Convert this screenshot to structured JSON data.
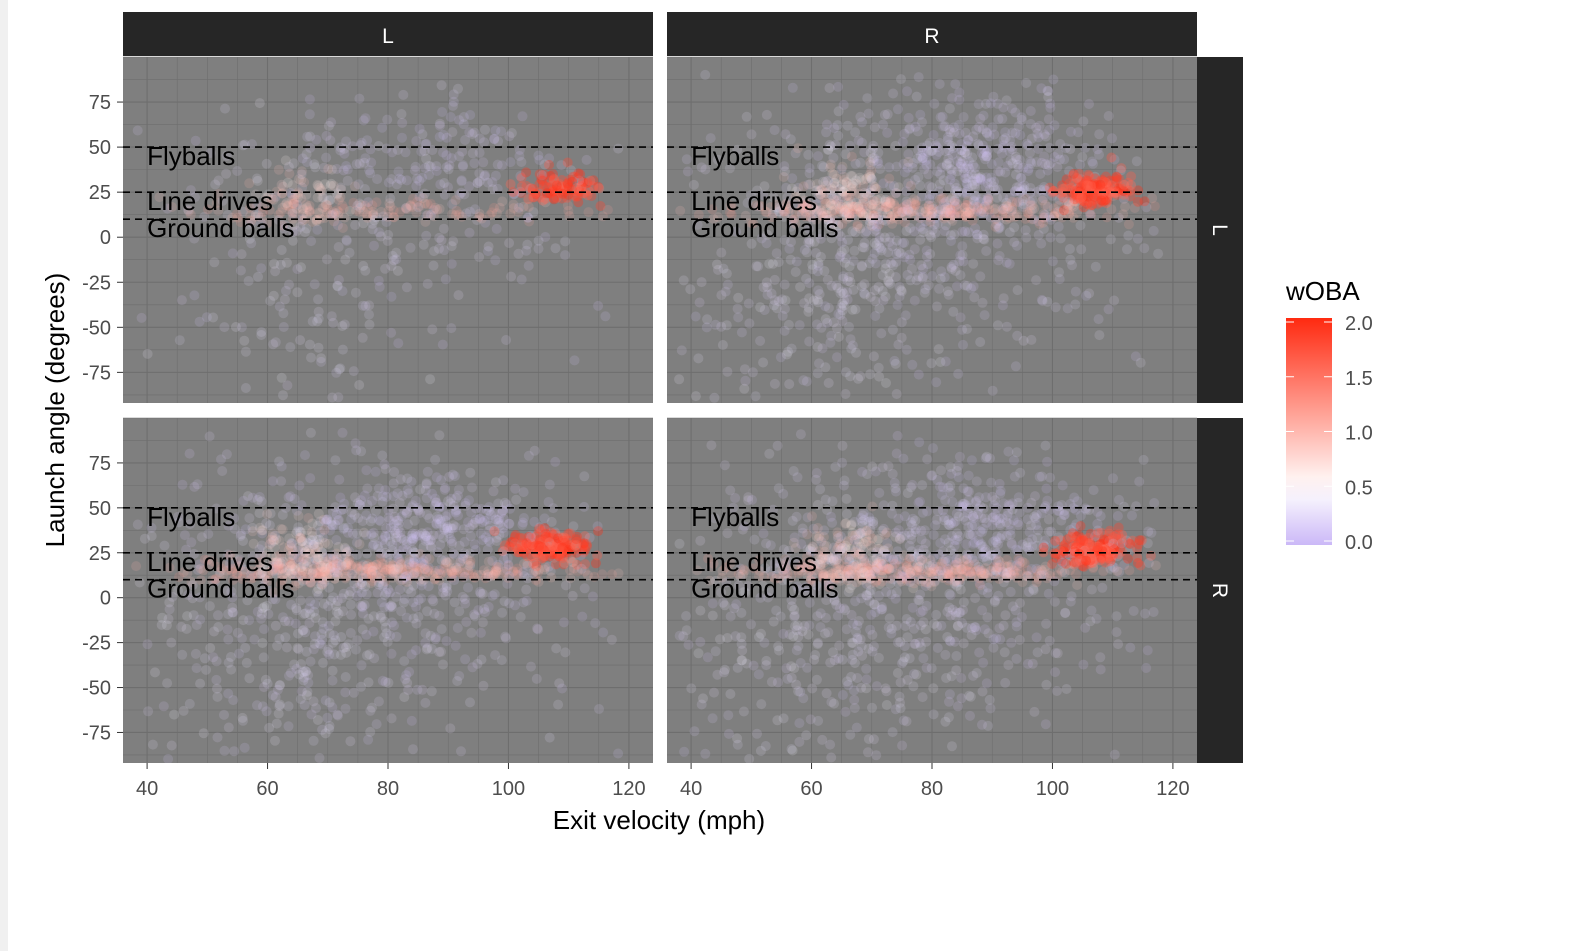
{
  "chart_data": {
    "type": "scatter",
    "facet_columns": [
      "L",
      "R"
    ],
    "facet_rows": [
      "L",
      "R"
    ],
    "xlabel": "Exit velocity (mph)",
    "ylabel": "Launch angle (degrees)",
    "xlim": [
      36,
      124
    ],
    "ylim": [
      -92,
      100
    ],
    "x_ticks": [
      40,
      60,
      80,
      100,
      120
    ],
    "y_ticks": [
      75,
      50,
      25,
      0,
      -25,
      -50,
      -75
    ],
    "reference_lines": [
      {
        "y": 50,
        "label": "Flyballs"
      },
      {
        "y": 25,
        "label": "Line drives"
      },
      {
        "y": 10,
        "label": "Ground balls"
      }
    ],
    "color_scale": {
      "title": "wOBA",
      "low_color": "#cbb8f7",
      "mid_color": "#ffffff",
      "high_color": "#ff2a10",
      "breaks": [
        2.0,
        1.5,
        1.0,
        0.5,
        0.0
      ],
      "break_labels": [
        "2.0",
        "1.5",
        "1.0",
        "0.5",
        "0.0"
      ],
      "limits": [
        0,
        2.0
      ]
    },
    "panels": [
      {
        "col": "L",
        "row": "L",
        "density": 0.45,
        "hot_center_x": 108,
        "hot_center_y": 28,
        "hot_intensity": 2.0
      },
      {
        "col": "R",
        "row": "L",
        "density": 1.0,
        "hot_center_x": 107,
        "hot_center_y": 27,
        "hot_intensity": 2.0
      },
      {
        "col": "L",
        "row": "R",
        "density": 1.0,
        "hot_center_x": 107,
        "hot_center_y": 28,
        "hot_intensity": 2.0
      },
      {
        "col": "R",
        "row": "R",
        "density": 1.0,
        "hot_center_x": 107,
        "hot_center_y": 27,
        "hot_intensity": 2.0
      }
    ],
    "panel_background": "#7f7f7f",
    "strip_background": "#262626"
  }
}
